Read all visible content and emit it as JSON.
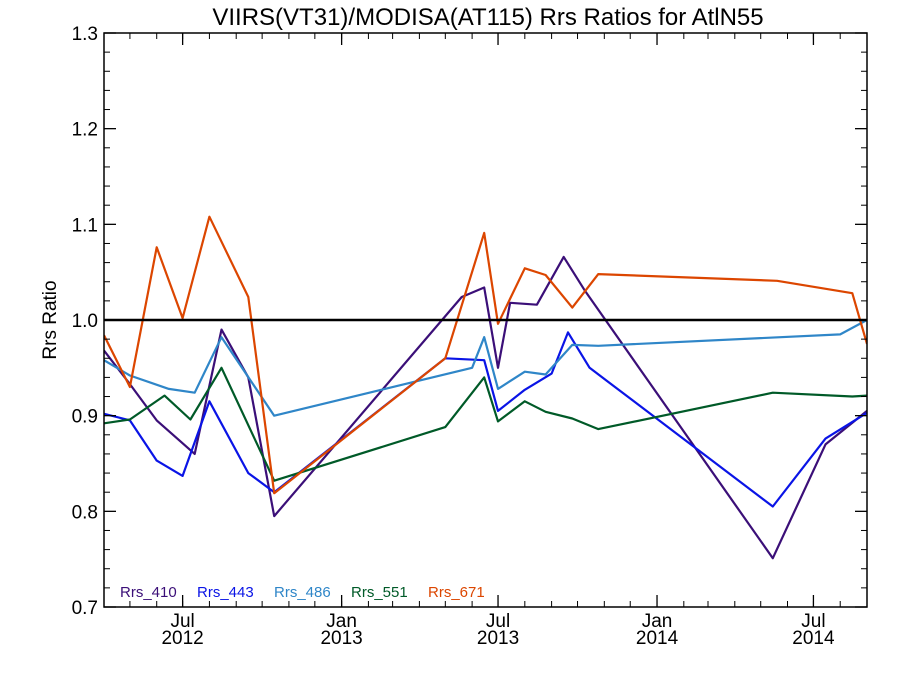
{
  "chart_data": {
    "type": "line",
    "title": "VIIRS(VT31)/MODISA(AT115)  Rrs Ratios for AtlN55",
    "xlabel": "",
    "ylabel": "Rrs Ratio",
    "ylim": [
      0.7,
      1.3
    ],
    "y_ticks": [
      "0.7",
      "0.8",
      "0.9",
      "1.0",
      "1.1",
      "1.2",
      "1.3"
    ],
    "xlim": [
      "2012-04-01",
      "2014-09-01"
    ],
    "x_ticks": [
      {
        "date": "2012-07-01",
        "month": "Jul",
        "year": "2012"
      },
      {
        "date": "2013-01-01",
        "month": "Jan",
        "year": "2013"
      },
      {
        "date": "2013-07-01",
        "month": "Jul",
        "year": "2013"
      },
      {
        "date": "2014-01-01",
        "month": "Jan",
        "year": "2014"
      },
      {
        "date": "2014-07-01",
        "month": "Jul",
        "year": "2014"
      }
    ],
    "reference_line": 1.0,
    "grid": false,
    "legend_position": "bottom-left",
    "series": [
      {
        "name": "Rrs_410",
        "color": "#3b0f78",
        "points": [
          [
            "2012-04-01",
            0.968
          ],
          [
            "2012-05-01",
            0.933
          ],
          [
            "2012-06-01",
            0.895
          ],
          [
            "2012-07-15",
            0.86
          ],
          [
            "2012-08-15",
            0.99
          ],
          [
            "2012-09-15",
            0.94
          ],
          [
            "2012-10-15",
            0.795
          ],
          [
            "2013-05-20",
            1.024
          ],
          [
            "2013-06-15",
            1.034
          ],
          [
            "2013-07-01",
            0.95
          ],
          [
            "2013-07-15",
            1.018
          ],
          [
            "2013-08-15",
            1.016
          ],
          [
            "2013-09-15",
            1.066
          ],
          [
            "2013-10-10",
            1.03
          ],
          [
            "2014-05-15",
            0.751
          ],
          [
            "2014-07-15",
            0.87
          ],
          [
            "2014-09-01",
            0.905
          ]
        ]
      },
      {
        "name": "Rrs_443",
        "color": "#0a14e6",
        "points": [
          [
            "2012-04-01",
            0.902
          ],
          [
            "2012-05-01",
            0.895
          ],
          [
            "2012-06-01",
            0.853
          ],
          [
            "2012-07-01",
            0.837
          ],
          [
            "2012-08-01",
            0.915
          ],
          [
            "2012-09-15",
            0.84
          ],
          [
            "2012-10-15",
            0.82
          ],
          [
            "2013-05-01",
            0.96
          ],
          [
            "2013-06-15",
            0.958
          ],
          [
            "2013-07-01",
            0.905
          ],
          [
            "2013-08-01",
            0.927
          ],
          [
            "2013-09-01",
            0.944
          ],
          [
            "2013-09-20",
            0.987
          ],
          [
            "2013-10-15",
            0.95
          ],
          [
            "2014-05-15",
            0.805
          ],
          [
            "2014-07-15",
            0.876
          ],
          [
            "2014-09-01",
            0.903
          ]
        ]
      },
      {
        "name": "Rrs_486",
        "color": "#2f86c8",
        "points": [
          [
            "2012-04-01",
            0.958
          ],
          [
            "2012-05-01",
            0.942
          ],
          [
            "2012-06-15",
            0.928
          ],
          [
            "2012-07-15",
            0.924
          ],
          [
            "2012-08-15",
            0.982
          ],
          [
            "2012-10-15",
            0.9
          ],
          [
            "2013-06-01",
            0.95
          ],
          [
            "2013-06-15",
            0.982
          ],
          [
            "2013-07-01",
            0.928
          ],
          [
            "2013-08-01",
            0.946
          ],
          [
            "2013-08-25",
            0.943
          ],
          [
            "2013-09-25",
            0.974
          ],
          [
            "2013-10-25",
            0.973
          ],
          [
            "2014-08-01",
            0.985
          ],
          [
            "2014-09-01",
            1.0
          ]
        ]
      },
      {
        "name": "Rrs_551",
        "color": "#005a28",
        "points": [
          [
            "2012-04-01",
            0.892
          ],
          [
            "2012-05-01",
            0.896
          ],
          [
            "2012-06-10",
            0.921
          ],
          [
            "2012-07-10",
            0.896
          ],
          [
            "2012-08-15",
            0.95
          ],
          [
            "2012-10-15",
            0.832
          ],
          [
            "2013-05-01",
            0.888
          ],
          [
            "2013-06-15",
            0.94
          ],
          [
            "2013-07-01",
            0.894
          ],
          [
            "2013-08-01",
            0.915
          ],
          [
            "2013-08-25",
            0.904
          ],
          [
            "2013-09-25",
            0.897
          ],
          [
            "2013-10-25",
            0.886
          ],
          [
            "2014-05-15",
            0.924
          ],
          [
            "2014-08-15",
            0.92
          ],
          [
            "2014-09-01",
            0.921
          ]
        ]
      },
      {
        "name": "Rrs_671",
        "color": "#dc4600",
        "points": [
          [
            "2012-04-01",
            0.984
          ],
          [
            "2012-05-01",
            0.93
          ],
          [
            "2012-06-01",
            1.076
          ],
          [
            "2012-07-01",
            1.002
          ],
          [
            "2012-08-01",
            1.108
          ],
          [
            "2012-09-15",
            1.024
          ],
          [
            "2012-10-15",
            0.819
          ],
          [
            "2013-05-01",
            0.96
          ],
          [
            "2013-06-15",
            1.091
          ],
          [
            "2013-07-01",
            0.996
          ],
          [
            "2013-08-01",
            1.054
          ],
          [
            "2013-08-25",
            1.047
          ],
          [
            "2013-09-25",
            1.013
          ],
          [
            "2013-10-25",
            1.048
          ],
          [
            "2014-05-20",
            1.041
          ],
          [
            "2014-08-15",
            1.028
          ],
          [
            "2014-09-01",
            0.975
          ]
        ]
      }
    ]
  }
}
